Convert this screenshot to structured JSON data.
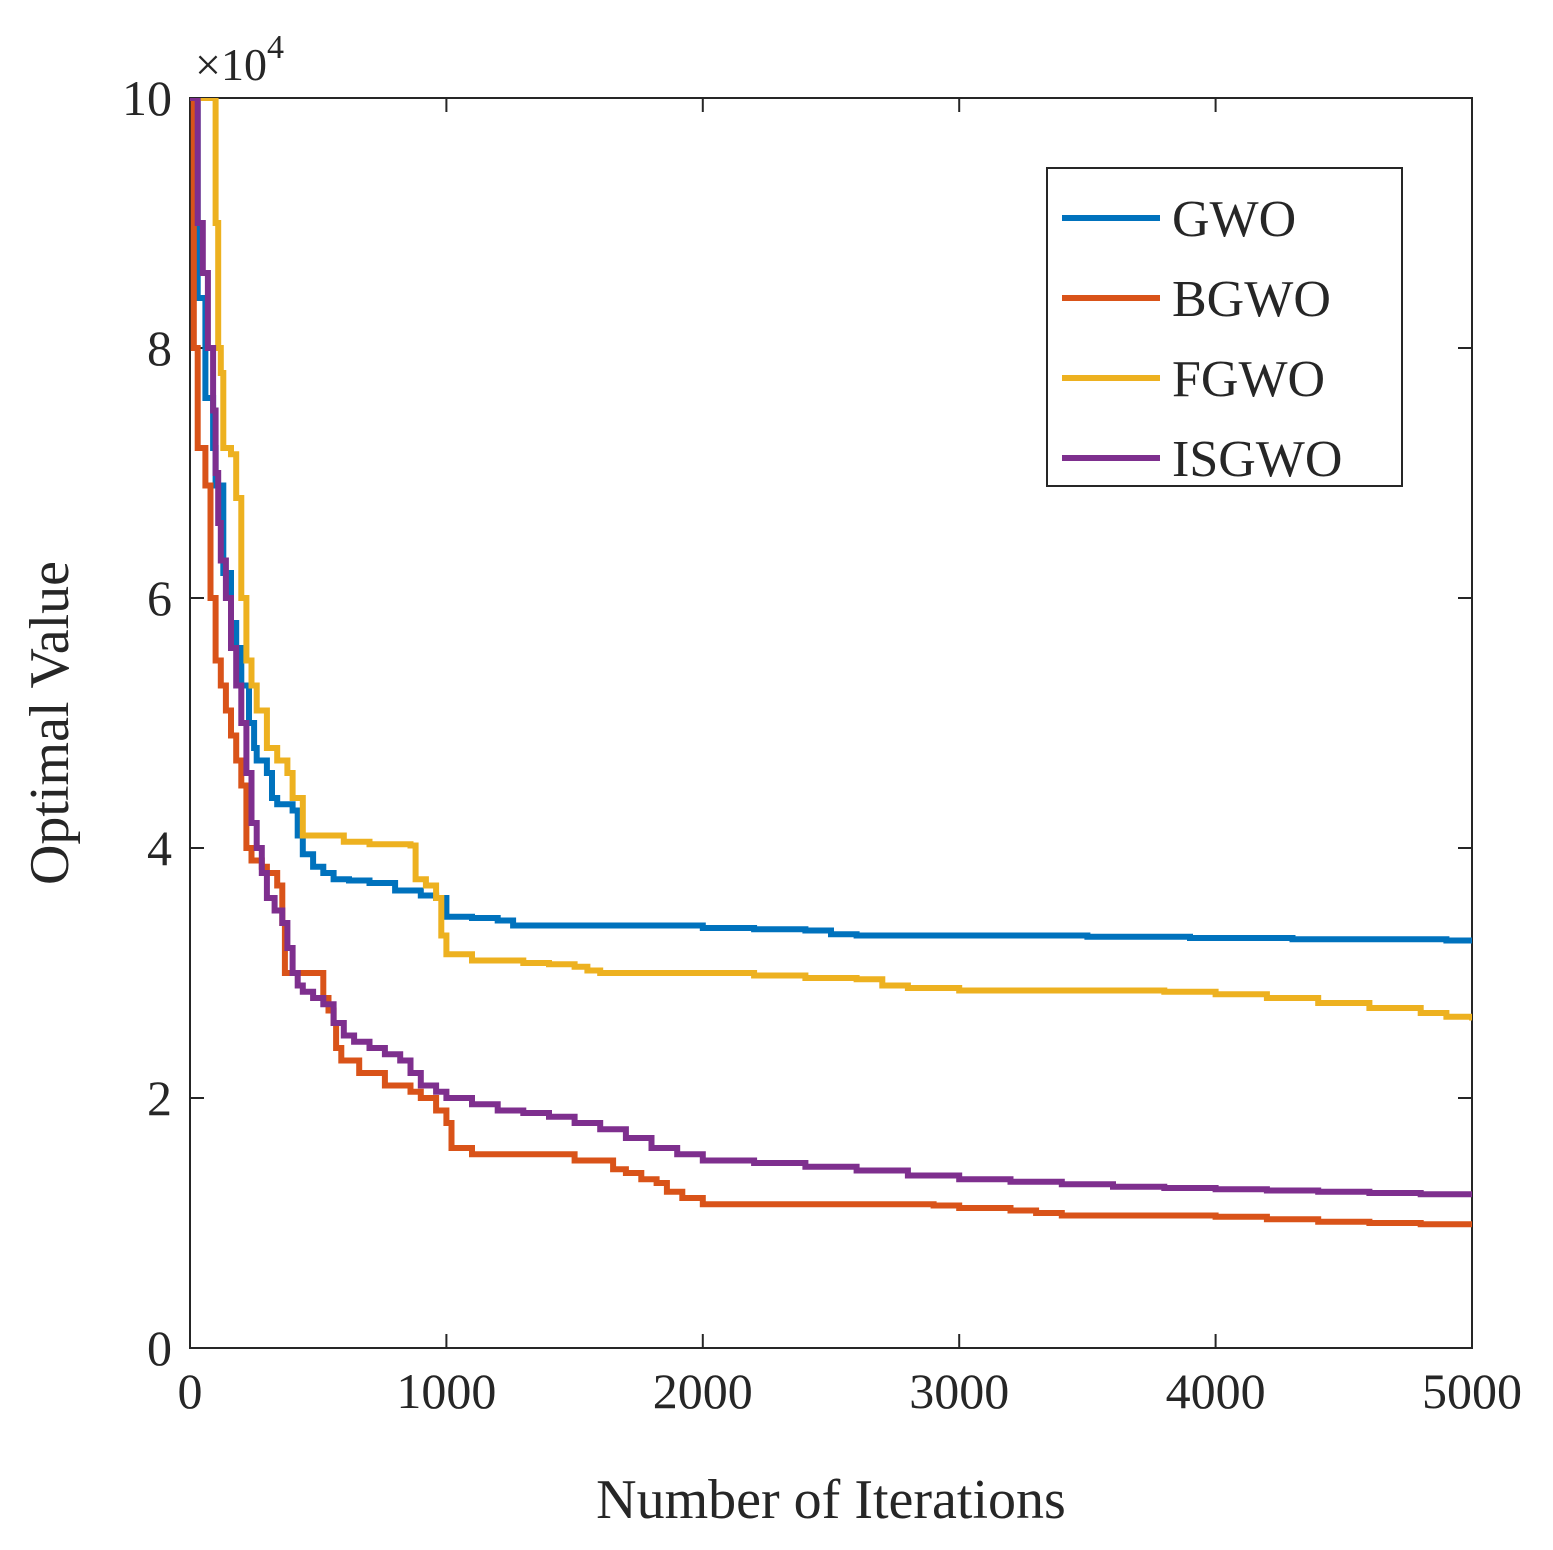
{
  "chart_data": {
    "type": "line",
    "xlabel": "Number of Iterations",
    "ylabel": "Optimal Value",
    "y_exponent_label": "×10",
    "y_exponent_power": "4",
    "xlim": [
      0,
      5000
    ],
    "ylim": [
      0,
      10
    ],
    "x_ticks": [
      0,
      1000,
      2000,
      3000,
      4000,
      5000
    ],
    "x_tick_labels": [
      "0",
      "1000",
      "2000",
      "3000",
      "4000",
      "5000"
    ],
    "y_ticks": [
      0,
      2,
      4,
      6,
      8,
      10
    ],
    "y_tick_labels": [
      "0",
      "2",
      "4",
      "6",
      "8",
      "10"
    ],
    "grid": false,
    "legend_position": "top-right",
    "series": [
      {
        "name": "GWO",
        "color": "#0072BD",
        "points": [
          [
            0,
            10
          ],
          [
            30,
            8.4
          ],
          [
            60,
            7.6
          ],
          [
            90,
            7.2
          ],
          [
            100,
            6.9
          ],
          [
            130,
            6.2
          ],
          [
            160,
            5.8
          ],
          [
            180,
            5.6
          ],
          [
            200,
            5.3
          ],
          [
            230,
            5.0
          ],
          [
            250,
            4.8
          ],
          [
            260,
            4.7
          ],
          [
            300,
            4.6
          ],
          [
            320,
            4.4
          ],
          [
            340,
            4.35
          ],
          [
            400,
            4.3
          ],
          [
            420,
            4.1
          ],
          [
            440,
            3.95
          ],
          [
            480,
            3.85
          ],
          [
            520,
            3.8
          ],
          [
            560,
            3.75
          ],
          [
            620,
            3.74
          ],
          [
            700,
            3.72
          ],
          [
            800,
            3.66
          ],
          [
            900,
            3.62
          ],
          [
            960,
            3.6
          ],
          [
            1000,
            3.45
          ],
          [
            1100,
            3.44
          ],
          [
            1200,
            3.42
          ],
          [
            1260,
            3.38
          ],
          [
            1400,
            3.38
          ],
          [
            1600,
            3.38
          ],
          [
            1800,
            3.38
          ],
          [
            2000,
            3.36
          ],
          [
            2200,
            3.35
          ],
          [
            2400,
            3.34
          ],
          [
            2500,
            3.31
          ],
          [
            2600,
            3.3
          ],
          [
            2700,
            3.3
          ],
          [
            2900,
            3.3
          ],
          [
            3100,
            3.3
          ],
          [
            3300,
            3.3
          ],
          [
            3500,
            3.29
          ],
          [
            3700,
            3.29
          ],
          [
            3900,
            3.28
          ],
          [
            4100,
            3.28
          ],
          [
            4300,
            3.27
          ],
          [
            4500,
            3.27
          ],
          [
            4700,
            3.27
          ],
          [
            4900,
            3.26
          ],
          [
            5000,
            3.26
          ]
        ]
      },
      {
        "name": "BGWO",
        "color": "#D95319",
        "points": [
          [
            0,
            10
          ],
          [
            15,
            8.0
          ],
          [
            30,
            7.2
          ],
          [
            60,
            6.9
          ],
          [
            80,
            6.0
          ],
          [
            100,
            5.5
          ],
          [
            120,
            5.3
          ],
          [
            140,
            5.1
          ],
          [
            160,
            4.9
          ],
          [
            180,
            4.7
          ],
          [
            200,
            4.5
          ],
          [
            220,
            4.0
          ],
          [
            240,
            3.9
          ],
          [
            280,
            3.85
          ],
          [
            300,
            3.8
          ],
          [
            340,
            3.7
          ],
          [
            360,
            3.4
          ],
          [
            370,
            3.0
          ],
          [
            400,
            3.0
          ],
          [
            460,
            3.0
          ],
          [
            500,
            3.0
          ],
          [
            520,
            2.8
          ],
          [
            540,
            2.7
          ],
          [
            560,
            2.6
          ],
          [
            570,
            2.4
          ],
          [
            590,
            2.3
          ],
          [
            620,
            2.3
          ],
          [
            660,
            2.2
          ],
          [
            720,
            2.2
          ],
          [
            760,
            2.1
          ],
          [
            820,
            2.1
          ],
          [
            860,
            2.05
          ],
          [
            900,
            2.0
          ],
          [
            960,
            1.9
          ],
          [
            1000,
            1.8
          ],
          [
            1020,
            1.6
          ],
          [
            1100,
            1.55
          ],
          [
            1200,
            1.55
          ],
          [
            1300,
            1.55
          ],
          [
            1400,
            1.55
          ],
          [
            1500,
            1.5
          ],
          [
            1600,
            1.5
          ],
          [
            1650,
            1.43
          ],
          [
            1700,
            1.4
          ],
          [
            1760,
            1.35
          ],
          [
            1820,
            1.32
          ],
          [
            1860,
            1.25
          ],
          [
            1920,
            1.2
          ],
          [
            2000,
            1.15
          ],
          [
            2100,
            1.15
          ],
          [
            2300,
            1.15
          ],
          [
            2500,
            1.15
          ],
          [
            2700,
            1.15
          ],
          [
            2900,
            1.14
          ],
          [
            3000,
            1.12
          ],
          [
            3200,
            1.1
          ],
          [
            3300,
            1.08
          ],
          [
            3400,
            1.06
          ],
          [
            3600,
            1.06
          ],
          [
            3800,
            1.06
          ],
          [
            4000,
            1.05
          ],
          [
            4200,
            1.03
          ],
          [
            4400,
            1.01
          ],
          [
            4600,
            1.0
          ],
          [
            4800,
            0.99
          ],
          [
            5000,
            0.98
          ]
        ]
      },
      {
        "name": "FGWO",
        "color": "#EDB120",
        "points": [
          [
            0,
            10
          ],
          [
            40,
            10
          ],
          [
            60,
            10
          ],
          [
            80,
            10
          ],
          [
            100,
            9.0
          ],
          [
            110,
            8.0
          ],
          [
            120,
            7.8
          ],
          [
            130,
            7.2
          ],
          [
            160,
            7.15
          ],
          [
            180,
            6.8
          ],
          [
            200,
            6.0
          ],
          [
            220,
            5.5
          ],
          [
            240,
            5.3
          ],
          [
            260,
            5.1
          ],
          [
            300,
            4.8
          ],
          [
            340,
            4.7
          ],
          [
            380,
            4.6
          ],
          [
            400,
            4.4
          ],
          [
            440,
            4.1
          ],
          [
            500,
            4.1
          ],
          [
            560,
            4.1
          ],
          [
            600,
            4.05
          ],
          [
            700,
            4.03
          ],
          [
            800,
            4.03
          ],
          [
            860,
            4.02
          ],
          [
            880,
            3.75
          ],
          [
            920,
            3.7
          ],
          [
            960,
            3.6
          ],
          [
            980,
            3.3
          ],
          [
            1000,
            3.15
          ],
          [
            1100,
            3.1
          ],
          [
            1200,
            3.1
          ],
          [
            1300,
            3.08
          ],
          [
            1400,
            3.07
          ],
          [
            1500,
            3.05
          ],
          [
            1550,
            3.02
          ],
          [
            1600,
            3.0
          ],
          [
            1800,
            3.0
          ],
          [
            2000,
            3.0
          ],
          [
            2200,
            2.98
          ],
          [
            2400,
            2.96
          ],
          [
            2600,
            2.95
          ],
          [
            2700,
            2.9
          ],
          [
            2800,
            2.88
          ],
          [
            3000,
            2.86
          ],
          [
            3200,
            2.86
          ],
          [
            3400,
            2.86
          ],
          [
            3600,
            2.86
          ],
          [
            3800,
            2.85
          ],
          [
            4000,
            2.83
          ],
          [
            4200,
            2.8
          ],
          [
            4400,
            2.76
          ],
          [
            4600,
            2.72
          ],
          [
            4800,
            2.68
          ],
          [
            4900,
            2.65
          ],
          [
            5000,
            2.62
          ]
        ]
      },
      {
        "name": "ISGWO",
        "color": "#7E2F8E",
        "points": [
          [
            0,
            10
          ],
          [
            30,
            9.0
          ],
          [
            50,
            8.6
          ],
          [
            70,
            8.0
          ],
          [
            90,
            7.5
          ],
          [
            100,
            7.0
          ],
          [
            110,
            6.6
          ],
          [
            120,
            6.3
          ],
          [
            140,
            6.0
          ],
          [
            160,
            5.6
          ],
          [
            180,
            5.3
          ],
          [
            200,
            5.0
          ],
          [
            220,
            4.6
          ],
          [
            240,
            4.2
          ],
          [
            260,
            4.0
          ],
          [
            280,
            3.8
          ],
          [
            300,
            3.6
          ],
          [
            330,
            3.5
          ],
          [
            360,
            3.4
          ],
          [
            380,
            3.2
          ],
          [
            400,
            3.0
          ],
          [
            420,
            2.9
          ],
          [
            440,
            2.85
          ],
          [
            480,
            2.8
          ],
          [
            520,
            2.75
          ],
          [
            560,
            2.6
          ],
          [
            600,
            2.5
          ],
          [
            640,
            2.45
          ],
          [
            700,
            2.4
          ],
          [
            760,
            2.35
          ],
          [
            820,
            2.3
          ],
          [
            860,
            2.2
          ],
          [
            900,
            2.1
          ],
          [
            960,
            2.05
          ],
          [
            1000,
            2.0
          ],
          [
            1040,
            2.0
          ],
          [
            1100,
            1.95
          ],
          [
            1200,
            1.9
          ],
          [
            1300,
            1.88
          ],
          [
            1400,
            1.85
          ],
          [
            1500,
            1.8
          ],
          [
            1600,
            1.75
          ],
          [
            1700,
            1.68
          ],
          [
            1800,
            1.6
          ],
          [
            1900,
            1.55
          ],
          [
            2000,
            1.5
          ],
          [
            2200,
            1.48
          ],
          [
            2400,
            1.45
          ],
          [
            2600,
            1.42
          ],
          [
            2800,
            1.38
          ],
          [
            3000,
            1.35
          ],
          [
            3200,
            1.33
          ],
          [
            3400,
            1.31
          ],
          [
            3600,
            1.29
          ],
          [
            3800,
            1.28
          ],
          [
            4000,
            1.27
          ],
          [
            4200,
            1.26
          ],
          [
            4400,
            1.25
          ],
          [
            4600,
            1.24
          ],
          [
            4800,
            1.23
          ],
          [
            5000,
            1.22
          ]
        ]
      }
    ]
  }
}
